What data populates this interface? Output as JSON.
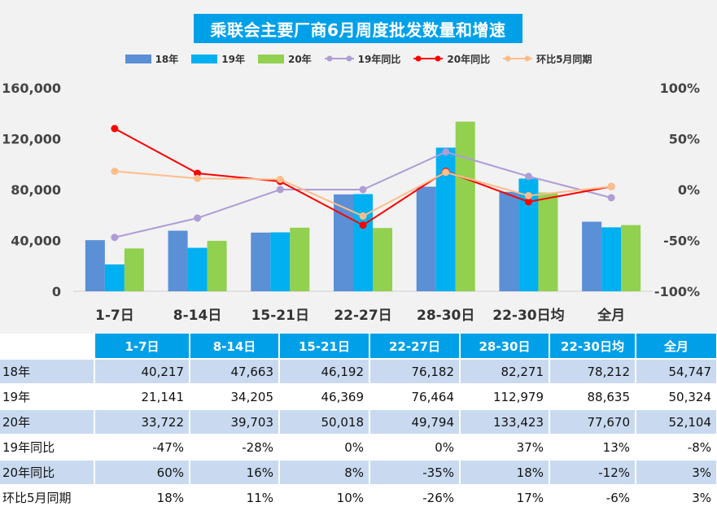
{
  "chart_data": {
    "type": "bar",
    "title": "乘联会主要厂商6月周度批发数量和增速",
    "categories": [
      "1-7日",
      "8-14日",
      "15-21日",
      "22-27日",
      "28-30日",
      "22-30日均",
      "全月"
    ],
    "series": [
      {
        "name": "18年",
        "type": "bar",
        "axis": "left",
        "color": "#5b8fd6",
        "values": [
          40217,
          47663,
          46192,
          76182,
          82271,
          78212,
          54747
        ]
      },
      {
        "name": "19年",
        "type": "bar",
        "axis": "left",
        "color": "#00b0f0",
        "values": [
          21141,
          34205,
          46369,
          76464,
          112979,
          88635,
          50324
        ]
      },
      {
        "name": "20年",
        "type": "bar",
        "axis": "left",
        "color": "#92d050",
        "values": [
          33722,
          39703,
          50018,
          49794,
          133423,
          77670,
          52104
        ]
      },
      {
        "name": "19年同比",
        "type": "line",
        "axis": "right",
        "color": "#ae9dd6",
        "values": [
          -47,
          -28,
          0,
          0,
          37,
          13,
          -8
        ]
      },
      {
        "name": "20年同比",
        "type": "line",
        "axis": "right",
        "color": "#ff0000",
        "values": [
          60,
          16,
          8,
          -35,
          18,
          -12,
          3
        ]
      },
      {
        "name": "环比5月同期",
        "type": "line",
        "axis": "right",
        "color": "#ffbd8a",
        "values": [
          18,
          11,
          10,
          -26,
          17,
          -6,
          3
        ]
      }
    ],
    "y_left": {
      "min": 0,
      "max": 160000,
      "ticks": [
        "0",
        "40,000",
        "80,000",
        "120,000",
        "160,000"
      ]
    },
    "y_right": {
      "min": -100,
      "max": 100,
      "ticks": [
        "-100%",
        "-50%",
        "0%",
        "50%",
        "100%"
      ]
    },
    "legend_position": "top-center",
    "grid": false
  },
  "table": {
    "headers": [
      "",
      "1-7日",
      "8-14日",
      "15-21日",
      "22-27日",
      "28-30日",
      "22-30日均",
      "全月"
    ],
    "rows": [
      {
        "label": "18年",
        "cells": [
          "40,217",
          "47,663",
          "46,192",
          "76,182",
          "82,271",
          "78,212",
          "54,747"
        ]
      },
      {
        "label": "19年",
        "cells": [
          "21,141",
          "34,205",
          "46,369",
          "76,464",
          "112,979",
          "88,635",
          "50,324"
        ]
      },
      {
        "label": "20年",
        "cells": [
          "33,722",
          "39,703",
          "50,018",
          "49,794",
          "133,423",
          "77,670",
          "52,104"
        ]
      },
      {
        "label": "19年同比",
        "cells": [
          "-47%",
          "-28%",
          "0%",
          "0%",
          "37%",
          "13%",
          "-8%"
        ]
      },
      {
        "label": "20年同比",
        "cells": [
          "60%",
          "16%",
          "8%",
          "-35%",
          "18%",
          "-12%",
          "3%"
        ]
      },
      {
        "label": "环比5月同期",
        "cells": [
          "18%",
          "11%",
          "10%",
          "-26%",
          "17%",
          "-6%",
          "3%"
        ]
      }
    ]
  }
}
